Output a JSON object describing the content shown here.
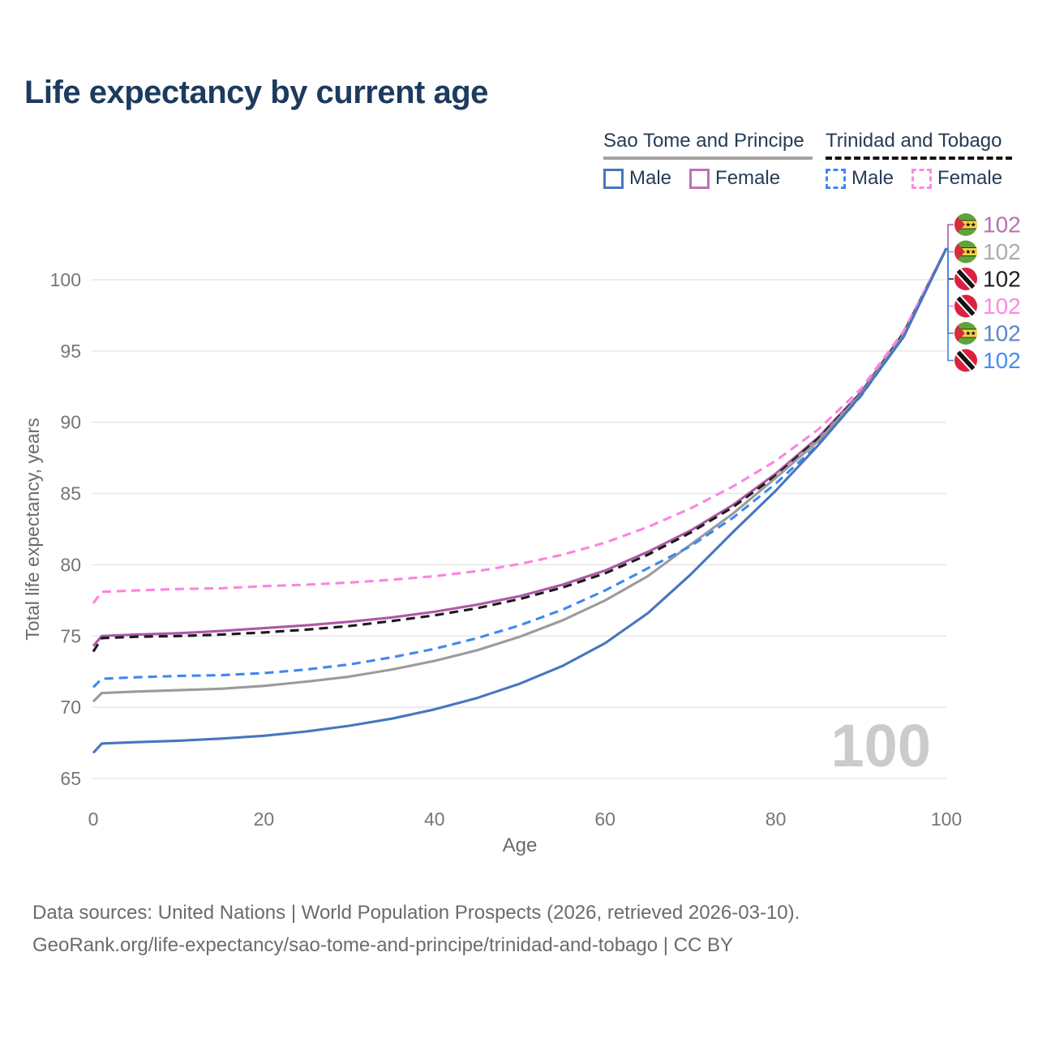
{
  "title": "Life expectancy by current age",
  "legend": {
    "groups": [
      {
        "label": "Sao Tome and Principe",
        "line_style": "solid",
        "underline_color": "#a3a3a3",
        "items": [
          {
            "label": "Male",
            "color": "#4677bf",
            "dash": false
          },
          {
            "label": "Female",
            "color": "#bb73b4",
            "dash": false
          }
        ]
      },
      {
        "label": "Trinidad and Tobago",
        "line_style": "dashed",
        "underline_color": "#141414",
        "items": [
          {
            "label": "Male",
            "color": "#3e87f2",
            "dash": true
          },
          {
            "label": "Female",
            "color": "#fb8ae3",
            "dash": true
          }
        ]
      }
    ]
  },
  "chart_data": {
    "type": "line",
    "title": "Life expectancy by current age",
    "xlabel": "Age",
    "ylabel": "Total life expectancy, years",
    "xlim": [
      0,
      100
    ],
    "ylim": [
      63.5,
      103
    ],
    "x_ticks": [
      0,
      20,
      40,
      60,
      80,
      100
    ],
    "y_ticks": [
      65,
      70,
      75,
      80,
      85,
      90,
      95,
      100
    ],
    "grid": "horizontal",
    "legend_position": "top-right",
    "x": [
      0,
      1,
      5,
      10,
      15,
      20,
      25,
      30,
      35,
      40,
      45,
      50,
      55,
      60,
      65,
      70,
      75,
      80,
      85,
      90,
      95,
      100
    ],
    "series": [
      {
        "id": "stp-female",
        "name": "Sao Tome and Principe Female",
        "flag": "stp",
        "color": "#ae58a6",
        "dash": "solid",
        "values": [
          74.3,
          75.0,
          75.1,
          75.2,
          75.35,
          75.55,
          75.75,
          76.0,
          76.3,
          76.7,
          77.2,
          77.8,
          78.6,
          79.6,
          80.9,
          82.4,
          84.2,
          86.4,
          88.95,
          92.1,
          96.3,
          102.2
        ]
      },
      {
        "id": "tt-both",
        "name": "Trinidad and Tobago Both sexes",
        "flag": "tt",
        "color": "#1a1a1a",
        "dash": "dashed",
        "values": [
          73.9,
          74.85,
          74.95,
          75.0,
          75.1,
          75.25,
          75.45,
          75.7,
          76.05,
          76.45,
          76.95,
          77.6,
          78.4,
          79.4,
          80.7,
          82.25,
          84.05,
          86.25,
          88.85,
          92.05,
          96.25,
          102.2
        ]
      },
      {
        "id": "stp-both",
        "name": "Sao Tome and Principe Both sexes",
        "flag": "stp",
        "color": "#9b9b9b",
        "dash": "solid",
        "values": [
          70.4,
          71.0,
          71.1,
          71.2,
          71.3,
          71.5,
          71.8,
          72.15,
          72.65,
          73.25,
          74.0,
          74.95,
          76.1,
          77.5,
          79.2,
          81.4,
          83.6,
          86.1,
          88.7,
          92.0,
          96.15,
          102.2
        ]
      },
      {
        "id": "tt-female",
        "name": "Trinidad and Tobago Female",
        "flag": "tt",
        "color": "#fb84e1",
        "dash": "dashed",
        "values": [
          77.3,
          78.1,
          78.2,
          78.3,
          78.35,
          78.5,
          78.6,
          78.75,
          78.95,
          79.2,
          79.55,
          80.05,
          80.7,
          81.55,
          82.65,
          83.95,
          85.5,
          87.3,
          89.5,
          92.35,
          96.4,
          102.2
        ]
      },
      {
        "id": "tt-male",
        "name": "Trinidad and Tobago Male",
        "flag": "tt",
        "color": "#3e87f2",
        "dash": "dashed",
        "values": [
          71.4,
          72.0,
          72.1,
          72.2,
          72.25,
          72.4,
          72.65,
          73.0,
          73.5,
          74.1,
          74.85,
          75.75,
          76.85,
          78.2,
          79.75,
          81.3,
          83.3,
          85.7,
          88.45,
          91.85,
          96.05,
          102.2
        ]
      },
      {
        "id": "stp-male",
        "name": "Sao Tome and Principe Male",
        "flag": "stp",
        "color": "#4677bf",
        "dash": "solid",
        "values": [
          66.8,
          67.45,
          67.55,
          67.65,
          67.8,
          68.0,
          68.3,
          68.7,
          69.2,
          69.85,
          70.65,
          71.65,
          72.9,
          74.5,
          76.6,
          79.3,
          82.3,
          85.2,
          88.4,
          91.9,
          96.0,
          102.2
        ]
      }
    ],
    "end_labels": [
      {
        "series": "stp-female",
        "value": "102",
        "text_color": "#b472ae",
        "flag": "stp"
      },
      {
        "series": "stp-both",
        "value": "102",
        "text_color": "#ababab",
        "flag": "stp"
      },
      {
        "series": "tt-both",
        "value": "102",
        "text_color": "#1f1f1f",
        "flag": "tt"
      },
      {
        "series": "tt-female",
        "value": "102",
        "text_color": "#fb8ae3",
        "flag": "tt"
      },
      {
        "series": "stp-male",
        "value": "102",
        "text_color": "#5b87c9",
        "flag": "stp"
      },
      {
        "series": "tt-male",
        "value": "102",
        "text_color": "#418ef5",
        "flag": "tt"
      }
    ],
    "watermark": "100"
  },
  "footer": {
    "line1": "Data sources: United Nations | World Population Prospects (2026, retrieved 2026-03-10).",
    "line2": "GeoRank.org/life-expectancy/sao-tome-and-principe/trinidad-and-tobago | CC BY"
  }
}
